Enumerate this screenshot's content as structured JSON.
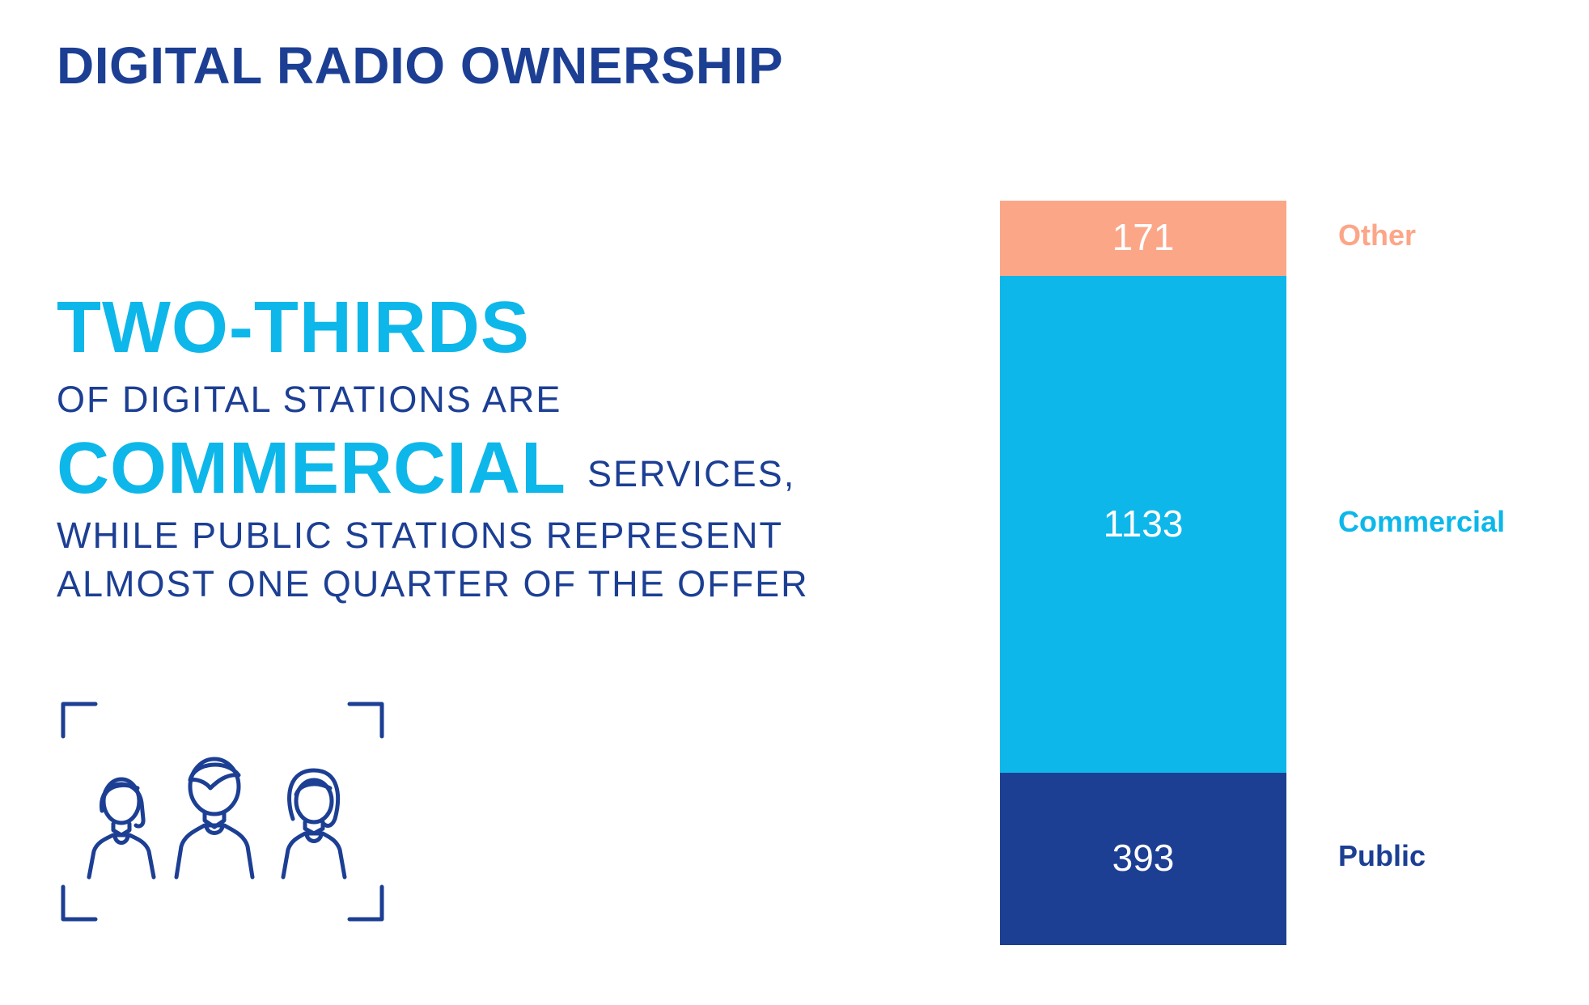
{
  "title": "DIGITAL RADIO OWNERSHIP",
  "headline": {
    "line1": "TWO-THIRDS",
    "line2": "OF DIGITAL STATIONS ARE",
    "line3_big": "COMMERCIAL",
    "line3_small": "SERVICES,",
    "line4": "WHILE PUBLIC STATIONS REPRESENT",
    "line5": "ALMOST ONE QUARTER OF THE OFFER"
  },
  "icons": {
    "people": "people-group-icon"
  },
  "colors": {
    "dark_blue": "#1c3f94",
    "cyan": "#0db7ea",
    "salmon": "#fca688"
  },
  "chart_data": {
    "type": "bar",
    "stacked": true,
    "categories": [
      ""
    ],
    "series": [
      {
        "name": "Public",
        "values": [
          393
        ],
        "color": "#1c3f94"
      },
      {
        "name": "Commercial",
        "values": [
          1133
        ],
        "color": "#0db7ea"
      },
      {
        "name": "Other",
        "values": [
          171
        ],
        "color": "#fca688"
      }
    ],
    "title": "",
    "xlabel": "",
    "ylabel": "",
    "legend": "right"
  }
}
